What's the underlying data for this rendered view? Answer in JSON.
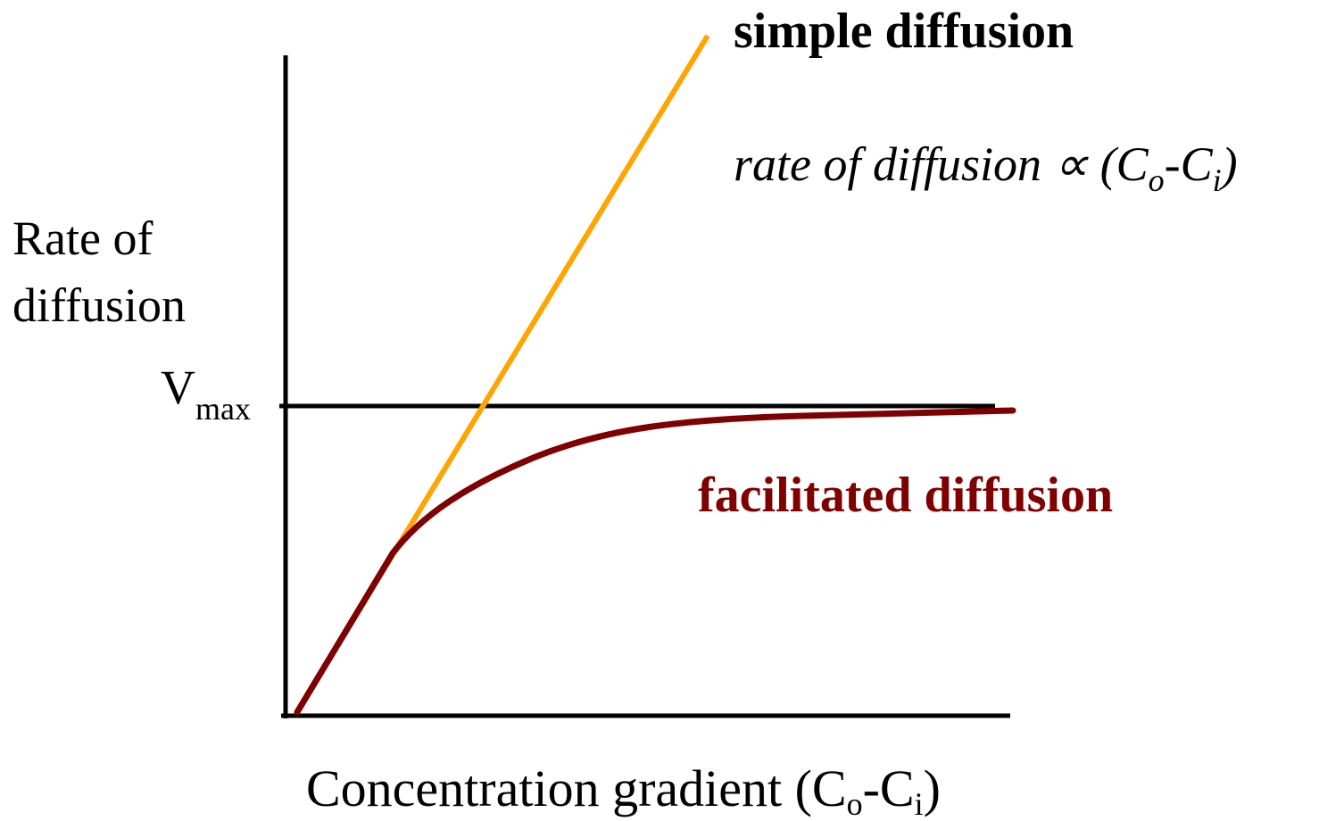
{
  "simple_label": "simple diffusion",
  "formula": [
    "rate of diffusion ∝ (C",
    "o",
    "-C",
    "i",
    ")"
  ],
  "y_axis_label": [
    "Rate of",
    "diffusion"
  ],
  "vmax": [
    "V",
    "max"
  ],
  "facilitated_label": "facilitated diffusion",
  "x_axis_label": [
    "Concentration gradient (C",
    "o",
    "-C",
    "i",
    ")"
  ]
}
